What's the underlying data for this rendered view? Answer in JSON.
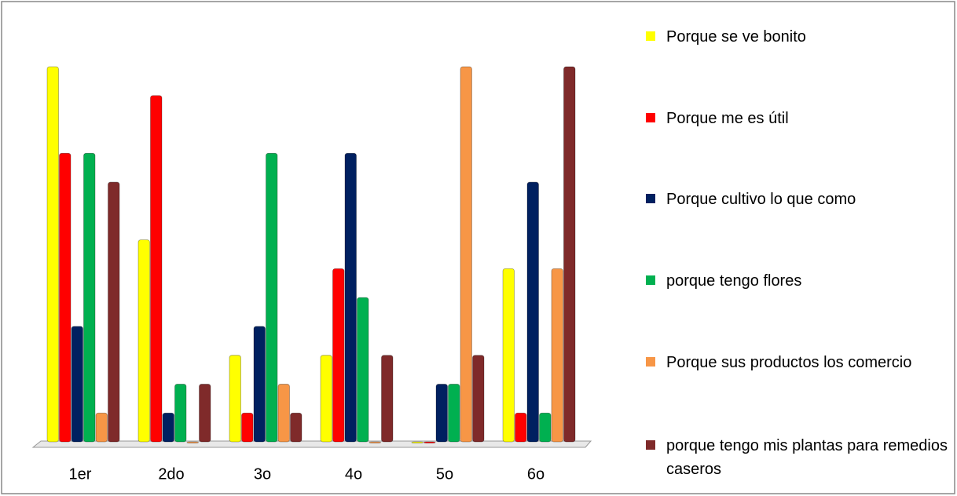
{
  "chart_data": {
    "type": "bar",
    "categories": [
      "1er",
      "2do",
      "3o",
      "4o",
      "5o",
      "6o"
    ],
    "series": [
      {
        "name": "Porque se ve bonito",
        "color": "#ffff00",
        "values": [
          13,
          7,
          3,
          3,
          0,
          6
        ]
      },
      {
        "name": "Porque me es útil",
        "color": "#ff0000",
        "values": [
          10,
          12,
          1,
          6,
          0,
          1
        ]
      },
      {
        "name": "Porque cultivo lo que como",
        "color": "#002060",
        "values": [
          4,
          1,
          4,
          10,
          2,
          9
        ]
      },
      {
        "name": "porque tengo flores",
        "color": "#00b050",
        "values": [
          10,
          2,
          10,
          5,
          2,
          1
        ]
      },
      {
        "name": "Porque sus productos los comercio",
        "color": "#f79646",
        "values": [
          1,
          0,
          2,
          0,
          13,
          6
        ]
      },
      {
        "name": "porque tengo mis plantas para remedios caseros",
        "color": "#7f2a2a",
        "values": [
          9,
          2,
          1,
          3,
          3,
          13
        ]
      }
    ],
    "ylim": [
      0,
      13
    ],
    "legend": "right"
  }
}
